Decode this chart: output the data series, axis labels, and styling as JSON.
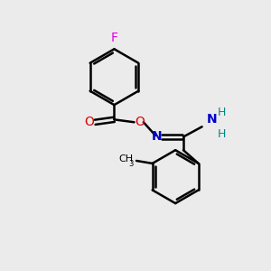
{
  "background_color": "#ebebeb",
  "bond_color": "#000000",
  "atom_colors": {
    "F": "#e000e0",
    "O": "#dd0000",
    "N": "#0000cc",
    "H": "#008888",
    "C": "#000000"
  },
  "figsize": [
    3.0,
    3.0
  ],
  "dpi": 100
}
